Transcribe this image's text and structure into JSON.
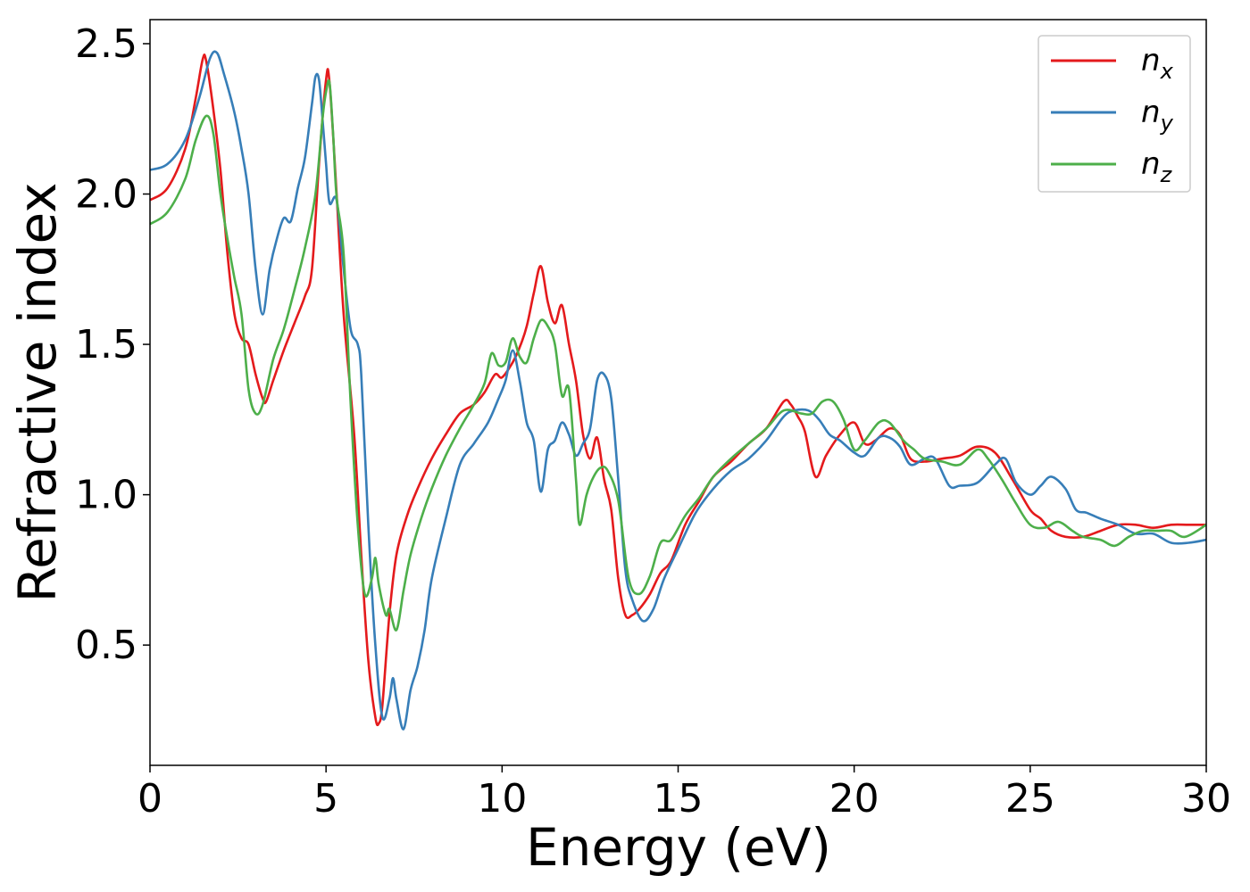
{
  "chart_data": {
    "type": "line",
    "title": "",
    "xlabel": "Energy (eV)",
    "ylabel": "Refractive index",
    "xlim": [
      0,
      30
    ],
    "ylim": [
      0.1,
      2.58
    ],
    "xticks": [
      0,
      5,
      10,
      15,
      20,
      25,
      30
    ],
    "yticks": [
      0.5,
      1.0,
      1.5,
      2.0,
      2.5
    ],
    "xtick_labels": [
      "0",
      "5",
      "10",
      "15",
      "20",
      "25",
      "30"
    ],
    "ytick_labels": [
      "0.5",
      "1.0",
      "1.5",
      "2.0",
      "2.5"
    ],
    "grid": false,
    "legend_position": "top-right",
    "series": [
      {
        "name": "n",
        "subscript": "x",
        "color": "#e41a1c",
        "points": [
          [
            0,
            1.98
          ],
          [
            0.5,
            2.02
          ],
          [
            1.0,
            2.15
          ],
          [
            1.3,
            2.32
          ],
          [
            1.5,
            2.45
          ],
          [
            1.6,
            2.44
          ],
          [
            1.8,
            2.28
          ],
          [
            2.0,
            2.08
          ],
          [
            2.2,
            1.8
          ],
          [
            2.4,
            1.6
          ],
          [
            2.6,
            1.52
          ],
          [
            2.8,
            1.5
          ],
          [
            3.0,
            1.4
          ],
          [
            3.2,
            1.32
          ],
          [
            3.3,
            1.31
          ],
          [
            3.5,
            1.38
          ],
          [
            3.8,
            1.48
          ],
          [
            4.1,
            1.57
          ],
          [
            4.4,
            1.66
          ],
          [
            4.6,
            1.75
          ],
          [
            4.8,
            2.1
          ],
          [
            5.0,
            2.38
          ],
          [
            5.1,
            2.37
          ],
          [
            5.3,
            2.0
          ],
          [
            5.5,
            1.6
          ],
          [
            5.8,
            1.2
          ],
          [
            6.0,
            0.8
          ],
          [
            6.2,
            0.45
          ],
          [
            6.4,
            0.26
          ],
          [
            6.5,
            0.24
          ],
          [
            6.6,
            0.3
          ],
          [
            6.8,
            0.6
          ],
          [
            7.0,
            0.8
          ],
          [
            7.3,
            0.93
          ],
          [
            7.6,
            1.02
          ],
          [
            8.0,
            1.12
          ],
          [
            8.4,
            1.2
          ],
          [
            8.8,
            1.27
          ],
          [
            9.2,
            1.3
          ],
          [
            9.5,
            1.34
          ],
          [
            9.8,
            1.4
          ],
          [
            10.0,
            1.39
          ],
          [
            10.3,
            1.44
          ],
          [
            10.5,
            1.49
          ],
          [
            10.7,
            1.56
          ],
          [
            10.9,
            1.67
          ],
          [
            11.1,
            1.76
          ],
          [
            11.3,
            1.64
          ],
          [
            11.5,
            1.57
          ],
          [
            11.7,
            1.63
          ],
          [
            11.9,
            1.5
          ],
          [
            12.1,
            1.38
          ],
          [
            12.3,
            1.2
          ],
          [
            12.5,
            1.12
          ],
          [
            12.7,
            1.19
          ],
          [
            12.9,
            1.05
          ],
          [
            13.1,
            0.95
          ],
          [
            13.3,
            0.72
          ],
          [
            13.5,
            0.6
          ],
          [
            13.7,
            0.6
          ],
          [
            13.9,
            0.62
          ],
          [
            14.2,
            0.67
          ],
          [
            14.5,
            0.74
          ],
          [
            14.8,
            0.78
          ],
          [
            15.2,
            0.9
          ],
          [
            15.6,
            0.98
          ],
          [
            16.0,
            1.06
          ],
          [
            16.5,
            1.11
          ],
          [
            17.0,
            1.17
          ],
          [
            17.5,
            1.22
          ],
          [
            18.0,
            1.31
          ],
          [
            18.2,
            1.3
          ],
          [
            18.4,
            1.26
          ],
          [
            18.6,
            1.21
          ],
          [
            18.9,
            1.06
          ],
          [
            19.2,
            1.13
          ],
          [
            19.6,
            1.2
          ],
          [
            20.0,
            1.24
          ],
          [
            20.3,
            1.17
          ],
          [
            20.6,
            1.18
          ],
          [
            21.0,
            1.22
          ],
          [
            21.3,
            1.2
          ],
          [
            21.6,
            1.12
          ],
          [
            22.0,
            1.11
          ],
          [
            22.5,
            1.12
          ],
          [
            23.0,
            1.13
          ],
          [
            23.5,
            1.16
          ],
          [
            24.0,
            1.14
          ],
          [
            24.5,
            1.05
          ],
          [
            25.0,
            0.95
          ],
          [
            25.3,
            0.92
          ],
          [
            25.6,
            0.88
          ],
          [
            26.0,
            0.86
          ],
          [
            26.5,
            0.86
          ],
          [
            27.0,
            0.88
          ],
          [
            27.5,
            0.9
          ],
          [
            28.0,
            0.9
          ],
          [
            28.5,
            0.89
          ],
          [
            29.0,
            0.9
          ],
          [
            29.5,
            0.9
          ],
          [
            30,
            0.9
          ]
        ]
      },
      {
        "name": "n",
        "subscript": "y",
        "color": "#377eb8",
        "points": [
          [
            0,
            2.08
          ],
          [
            0.5,
            2.1
          ],
          [
            1.0,
            2.18
          ],
          [
            1.4,
            2.32
          ],
          [
            1.7,
            2.45
          ],
          [
            1.9,
            2.47
          ],
          [
            2.1,
            2.4
          ],
          [
            2.4,
            2.27
          ],
          [
            2.6,
            2.15
          ],
          [
            2.8,
            2.0
          ],
          [
            3.0,
            1.75
          ],
          [
            3.2,
            1.6
          ],
          [
            3.4,
            1.75
          ],
          [
            3.6,
            1.85
          ],
          [
            3.8,
            1.92
          ],
          [
            4.0,
            1.91
          ],
          [
            4.2,
            2.02
          ],
          [
            4.4,
            2.12
          ],
          [
            4.6,
            2.3
          ],
          [
            4.7,
            2.39
          ],
          [
            4.8,
            2.38
          ],
          [
            4.9,
            2.25
          ],
          [
            5.0,
            2.1
          ],
          [
            5.1,
            1.97
          ],
          [
            5.3,
            1.98
          ],
          [
            5.5,
            1.75
          ],
          [
            5.7,
            1.55
          ],
          [
            5.9,
            1.5
          ],
          [
            6.0,
            1.4
          ],
          [
            6.2,
            0.9
          ],
          [
            6.4,
            0.5
          ],
          [
            6.6,
            0.26
          ],
          [
            6.8,
            0.32
          ],
          [
            6.9,
            0.39
          ],
          [
            7.0,
            0.32
          ],
          [
            7.2,
            0.22
          ],
          [
            7.4,
            0.35
          ],
          [
            7.6,
            0.43
          ],
          [
            7.8,
            0.55
          ],
          [
            8.0,
            0.72
          ],
          [
            8.4,
            0.92
          ],
          [
            8.8,
            1.1
          ],
          [
            9.2,
            1.17
          ],
          [
            9.6,
            1.24
          ],
          [
            9.9,
            1.32
          ],
          [
            10.1,
            1.38
          ],
          [
            10.3,
            1.48
          ],
          [
            10.5,
            1.38
          ],
          [
            10.7,
            1.24
          ],
          [
            10.9,
            1.18
          ],
          [
            11.1,
            1.01
          ],
          [
            11.3,
            1.15
          ],
          [
            11.5,
            1.18
          ],
          [
            11.7,
            1.24
          ],
          [
            11.9,
            1.2
          ],
          [
            12.1,
            1.13
          ],
          [
            12.3,
            1.17
          ],
          [
            12.5,
            1.22
          ],
          [
            12.7,
            1.38
          ],
          [
            12.9,
            1.4
          ],
          [
            13.1,
            1.32
          ],
          [
            13.3,
            1.05
          ],
          [
            13.5,
            0.75
          ],
          [
            13.7,
            0.65
          ],
          [
            14.0,
            0.58
          ],
          [
            14.3,
            0.62
          ],
          [
            14.6,
            0.72
          ],
          [
            15.0,
            0.82
          ],
          [
            15.5,
            0.94
          ],
          [
            16.0,
            1.02
          ],
          [
            16.5,
            1.08
          ],
          [
            17.0,
            1.12
          ],
          [
            17.5,
            1.18
          ],
          [
            18.0,
            1.26
          ],
          [
            18.3,
            1.28
          ],
          [
            18.7,
            1.28
          ],
          [
            19.0,
            1.25
          ],
          [
            19.3,
            1.2
          ],
          [
            19.6,
            1.18
          ],
          [
            20.0,
            1.14
          ],
          [
            20.3,
            1.13
          ],
          [
            20.7,
            1.19
          ],
          [
            21.0,
            1.19
          ],
          [
            21.3,
            1.16
          ],
          [
            21.6,
            1.1
          ],
          [
            22.0,
            1.12
          ],
          [
            22.3,
            1.12
          ],
          [
            22.7,
            1.03
          ],
          [
            23.0,
            1.03
          ],
          [
            23.5,
            1.04
          ],
          [
            24.0,
            1.1
          ],
          [
            24.3,
            1.12
          ],
          [
            24.6,
            1.04
          ],
          [
            25.0,
            1.0
          ],
          [
            25.3,
            1.03
          ],
          [
            25.6,
            1.06
          ],
          [
            26.0,
            1.02
          ],
          [
            26.3,
            0.95
          ],
          [
            26.6,
            0.94
          ],
          [
            27.0,
            0.92
          ],
          [
            27.5,
            0.9
          ],
          [
            28.0,
            0.87
          ],
          [
            28.5,
            0.87
          ],
          [
            29.0,
            0.84
          ],
          [
            29.5,
            0.84
          ],
          [
            30,
            0.85
          ]
        ]
      },
      {
        "name": "n",
        "subscript": "z",
        "color": "#4daf4a",
        "points": [
          [
            0,
            1.9
          ],
          [
            0.5,
            1.94
          ],
          [
            1.0,
            2.05
          ],
          [
            1.3,
            2.18
          ],
          [
            1.6,
            2.26
          ],
          [
            1.8,
            2.2
          ],
          [
            2.0,
            2.0
          ],
          [
            2.2,
            1.85
          ],
          [
            2.4,
            1.72
          ],
          [
            2.6,
            1.6
          ],
          [
            2.8,
            1.35
          ],
          [
            3.0,
            1.27
          ],
          [
            3.2,
            1.3
          ],
          [
            3.5,
            1.45
          ],
          [
            3.8,
            1.55
          ],
          [
            4.1,
            1.68
          ],
          [
            4.4,
            1.82
          ],
          [
            4.7,
            2.0
          ],
          [
            4.9,
            2.25
          ],
          [
            5.0,
            2.34
          ],
          [
            5.1,
            2.37
          ],
          [
            5.2,
            2.2
          ],
          [
            5.3,
            1.99
          ],
          [
            5.5,
            1.8
          ],
          [
            5.7,
            1.3
          ],
          [
            5.9,
            0.9
          ],
          [
            6.1,
            0.67
          ],
          [
            6.3,
            0.72
          ],
          [
            6.4,
            0.79
          ],
          [
            6.5,
            0.7
          ],
          [
            6.7,
            0.6
          ],
          [
            6.8,
            0.62
          ],
          [
            7.0,
            0.55
          ],
          [
            7.2,
            0.68
          ],
          [
            7.4,
            0.8
          ],
          [
            7.7,
            0.92
          ],
          [
            8.0,
            1.02
          ],
          [
            8.4,
            1.13
          ],
          [
            8.8,
            1.22
          ],
          [
            9.2,
            1.3
          ],
          [
            9.5,
            1.37
          ],
          [
            9.7,
            1.47
          ],
          [
            9.9,
            1.43
          ],
          [
            10.1,
            1.44
          ],
          [
            10.3,
            1.52
          ],
          [
            10.5,
            1.46
          ],
          [
            10.7,
            1.44
          ],
          [
            10.9,
            1.52
          ],
          [
            11.1,
            1.58
          ],
          [
            11.3,
            1.56
          ],
          [
            11.5,
            1.5
          ],
          [
            11.7,
            1.33
          ],
          [
            11.9,
            1.35
          ],
          [
            12.1,
            1.05
          ],
          [
            12.2,
            0.9
          ],
          [
            12.4,
            1.0
          ],
          [
            12.6,
            1.06
          ],
          [
            12.8,
            1.09
          ],
          [
            13.0,
            1.08
          ],
          [
            13.3,
            0.98
          ],
          [
            13.6,
            0.72
          ],
          [
            13.9,
            0.67
          ],
          [
            14.2,
            0.73
          ],
          [
            14.5,
            0.84
          ],
          [
            14.8,
            0.85
          ],
          [
            15.2,
            0.93
          ],
          [
            15.6,
            0.99
          ],
          [
            16.0,
            1.06
          ],
          [
            16.5,
            1.12
          ],
          [
            17.0,
            1.17
          ],
          [
            17.5,
            1.22
          ],
          [
            18.0,
            1.28
          ],
          [
            18.5,
            1.27
          ],
          [
            18.8,
            1.27
          ],
          [
            19.1,
            1.31
          ],
          [
            19.4,
            1.31
          ],
          [
            19.7,
            1.25
          ],
          [
            20.0,
            1.15
          ],
          [
            20.3,
            1.18
          ],
          [
            20.7,
            1.24
          ],
          [
            21.0,
            1.24
          ],
          [
            21.4,
            1.18
          ],
          [
            21.7,
            1.15
          ],
          [
            22.0,
            1.12
          ],
          [
            22.5,
            1.11
          ],
          [
            23.0,
            1.1
          ],
          [
            23.5,
            1.15
          ],
          [
            23.8,
            1.12
          ],
          [
            24.2,
            1.05
          ],
          [
            24.6,
            0.97
          ],
          [
            25.0,
            0.9
          ],
          [
            25.4,
            0.89
          ],
          [
            25.8,
            0.91
          ],
          [
            26.2,
            0.88
          ],
          [
            26.5,
            0.86
          ],
          [
            27.0,
            0.85
          ],
          [
            27.4,
            0.83
          ],
          [
            27.8,
            0.86
          ],
          [
            28.2,
            0.88
          ],
          [
            28.6,
            0.88
          ],
          [
            29.0,
            0.88
          ],
          [
            29.4,
            0.86
          ],
          [
            30,
            0.9
          ]
        ]
      }
    ]
  }
}
